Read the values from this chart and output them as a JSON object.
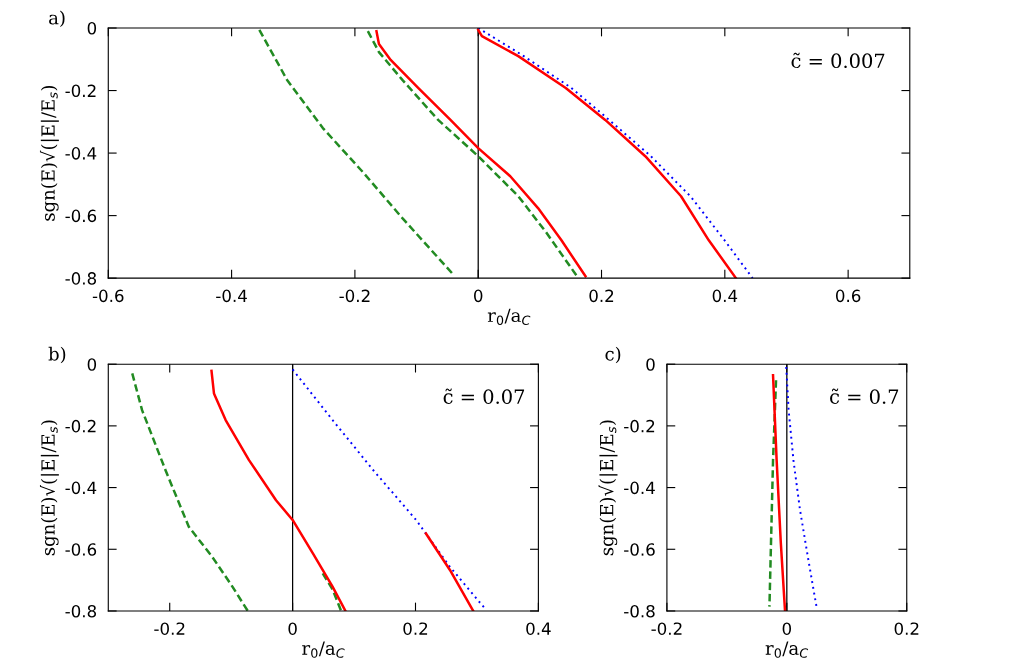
{
  "chart_data": [
    {
      "type": "line",
      "title": "a)",
      "xlabel": "r$_{0}$/a$_{C}$",
      "ylabel": "sgn(E)√(|E|/E$_{s}$)",
      "xlim": [
        -0.6,
        0.7
      ],
      "xticks": [
        -0.6,
        -0.4,
        -0.2,
        0,
        0.2,
        0.4,
        0.6
      ],
      "ylim": [
        -0.8,
        0
      ],
      "yticks": [
        -0.8,
        -0.6,
        -0.4,
        -0.2,
        0
      ],
      "grid": false,
      "legend": false,
      "marker": "none",
      "annotations": [
        "c̃ = 0.007"
      ],
      "ref_lines": [
        {
          "axis": "x",
          "value": 0,
          "color": "#000000",
          "line_style": "solid"
        }
      ],
      "series": [
        {
          "color": "#228b22",
          "line_style": "dashed",
          "x": [
            -0.355,
            -0.31,
            -0.252,
            -0.187,
            -0.123,
            -0.042
          ],
          "values": [
            -0.006,
            -0.166,
            -0.32,
            -0.461,
            -0.608,
            -0.785
          ]
        },
        {
          "color": "#228b22",
          "line_style": "dashed",
          "x": [
            -0.179,
            -0.161,
            -0.123,
            -0.065,
            0,
            0.065,
            0.11,
            0.161
          ],
          "values": [
            -0.01,
            -0.077,
            -0.166,
            -0.294,
            -0.41,
            -0.538,
            -0.653,
            -0.796
          ]
        },
        {
          "color": "#0000ff",
          "line_style": "dotted",
          "x": [
            0,
            0.07,
            0.15,
            0.21,
            0.28,
            0.345,
            0.4,
            0.445
          ],
          "values": [
            0,
            -0.085,
            -0.19,
            -0.29,
            -0.41,
            -0.54,
            -0.68,
            -0.8
          ]
        },
        {
          "color": "#ff0000",
          "line_style": "solid",
          "x": [
            -0.165,
            -0.161,
            -0.142,
            -0.097,
            -0.045,
            0,
            0.052,
            0.097,
            0.135,
            0.174
          ],
          "values": [
            -0.01,
            -0.051,
            -0.102,
            -0.192,
            -0.294,
            -0.384,
            -0.474,
            -0.576,
            -0.679,
            -0.794
          ]
        },
        {
          "color": "#ff0000",
          "line_style": "solid",
          "x": [
            0,
            0.006,
            0.065,
            0.142,
            0.206,
            0.271,
            0.329,
            0.374,
            0.418
          ],
          "values": [
            -0.006,
            -0.026,
            -0.09,
            -0.192,
            -0.294,
            -0.41,
            -0.538,
            -0.679,
            -0.8
          ]
        }
      ]
    },
    {
      "type": "line",
      "title": "b)",
      "xlabel": "r$_{0}$/a$_{C}$",
      "ylabel": "sgn(E)√(|E|/E$_{s}$)",
      "xlim": [
        -0.3,
        0.4
      ],
      "xticks": [
        -0.2,
        0,
        0.2,
        0.4
      ],
      "ylim": [
        -0.8,
        0
      ],
      "yticks": [
        -0.8,
        -0.6,
        -0.4,
        -0.2,
        0
      ],
      "grid": false,
      "legend": false,
      "marker": "none",
      "annotations": [
        "c̃ = 0.07"
      ],
      "ref_lines": [
        {
          "axis": "x",
          "value": 0,
          "color": "#000000",
          "line_style": "solid"
        }
      ],
      "series": [
        {
          "color": "#228b22",
          "line_style": "dashed",
          "x": [
            -0.261,
            -0.245,
            -0.207,
            -0.169,
            -0.131,
            -0.098,
            -0.073
          ],
          "values": [
            -0.03,
            -0.149,
            -0.343,
            -0.527,
            -0.624,
            -0.721,
            -0.8
          ]
        },
        {
          "color": "#228b22",
          "line_style": "dashed",
          "x": [
            0.049,
            0.065,
            0.079
          ],
          "values": [
            -0.678,
            -0.73,
            -0.8
          ]
        },
        {
          "color": "#0000ff",
          "line_style": "dotted",
          "x": [
            0,
            0.065,
            0.131,
            0.201,
            0.256,
            0.313
          ],
          "values": [
            -0.017,
            -0.181,
            -0.343,
            -0.505,
            -0.657,
            -0.792
          ]
        },
        {
          "color": "#ff0000",
          "line_style": "solid",
          "x": [
            -0.132,
            -0.128,
            -0.109,
            -0.071,
            -0.027,
            0,
            0.033,
            0.065,
            0.086
          ],
          "values": [
            -0.022,
            -0.095,
            -0.181,
            -0.311,
            -0.441,
            -0.505,
            -0.613,
            -0.721,
            -0.8
          ]
        },
        {
          "color": "#ff0000",
          "line_style": "solid",
          "x": [
            0.217,
            0.256,
            0.294
          ],
          "values": [
            -0.549,
            -0.667,
            -0.8
          ]
        }
      ]
    },
    {
      "type": "line",
      "title": "c)",
      "xlabel": "r$_{0}$/a$_{C}$",
      "ylabel": "sgn(E)√(|E|/E$_{s}$)",
      "xlim": [
        -0.2,
        0.2
      ],
      "xticks": [
        -0.2,
        0,
        0.2
      ],
      "ylim": [
        -0.8,
        0
      ],
      "yticks": [
        -0.8,
        -0.6,
        -0.4,
        -0.2,
        0
      ],
      "grid": false,
      "legend": false,
      "marker": "none",
      "annotations": [
        "c̃ = 0.7"
      ],
      "ref_lines": [
        {
          "axis": "x",
          "value": 0,
          "color": "#000000",
          "line_style": "solid"
        }
      ],
      "series": [
        {
          "color": "#228b22",
          "line_style": "dashed",
          "x": [
            -0.018,
            -0.023,
            -0.029
          ],
          "values": [
            -0.052,
            -0.311,
            -0.786
          ]
        },
        {
          "color": "#0000ff",
          "line_style": "dotted",
          "x": [
            -0.001,
            0.003,
            0.011,
            0.022,
            0.036,
            0.05
          ],
          "values": [
            -0.009,
            -0.149,
            -0.311,
            -0.473,
            -0.635,
            -0.792
          ]
        },
        {
          "color": "#ff0000",
          "line_style": "solid",
          "x": [
            -0.023,
            -0.017,
            -0.01,
            -0.003
          ],
          "values": [
            -0.036,
            -0.311,
            -0.58,
            -0.8
          ]
        }
      ]
    }
  ]
}
